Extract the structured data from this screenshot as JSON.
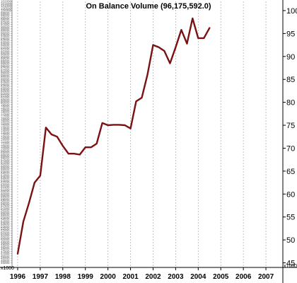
{
  "chart_data": {
    "type": "line",
    "title": "On Balance Volume (96,175,592.0)",
    "y_unit_label": "x1000",
    "left_unit_label": "x1000",
    "x_tick_labels": [
      "1996",
      "1997",
      "1998",
      "1999",
      "2000",
      "2001",
      "2002",
      "2003",
      "2004",
      "2005",
      "2006",
      "2007"
    ],
    "y_ticks": [
      45,
      50,
      55,
      60,
      65,
      70,
      75,
      80,
      85,
      90,
      95,
      100
    ],
    "ylim": [
      44,
      102
    ],
    "xlim": [
      1995.75,
      2007.75
    ],
    "grid": "vertical dashed",
    "series": [
      {
        "color": "#7b1113",
        "points": [
          [
            1996.0,
            47.0
          ],
          [
            1996.25,
            54.0
          ],
          [
            1996.5,
            58.0
          ],
          [
            1996.75,
            62.5
          ],
          [
            1997.0,
            64.0
          ],
          [
            1997.25,
            74.5
          ],
          [
            1997.5,
            73.0
          ],
          [
            1997.75,
            72.5
          ],
          [
            1998.0,
            70.5
          ],
          [
            1998.25,
            68.8
          ],
          [
            1998.5,
            68.8
          ],
          [
            1998.75,
            68.6
          ],
          [
            1999.0,
            70.2
          ],
          [
            1999.25,
            70.2
          ],
          [
            1999.5,
            71.0
          ],
          [
            1999.75,
            75.5
          ],
          [
            2000.0,
            75.0
          ],
          [
            2000.25,
            75.1
          ],
          [
            2000.5,
            75.1
          ],
          [
            2000.75,
            75.0
          ],
          [
            2001.0,
            74.3
          ],
          [
            2001.25,
            80.2
          ],
          [
            2001.5,
            81.0
          ],
          [
            2001.75,
            86.0
          ],
          [
            2002.0,
            92.5
          ],
          [
            2002.25,
            92.0
          ],
          [
            2002.5,
            91.2
          ],
          [
            2002.75,
            88.5
          ],
          [
            2003.0,
            92.0
          ],
          [
            2003.25,
            95.8
          ],
          [
            2003.5,
            92.8
          ],
          [
            2003.75,
            98.3
          ],
          [
            2004.0,
            94.0
          ],
          [
            2004.25,
            94.0
          ],
          [
            2004.5,
            96.2
          ]
        ]
      }
    ]
  }
}
